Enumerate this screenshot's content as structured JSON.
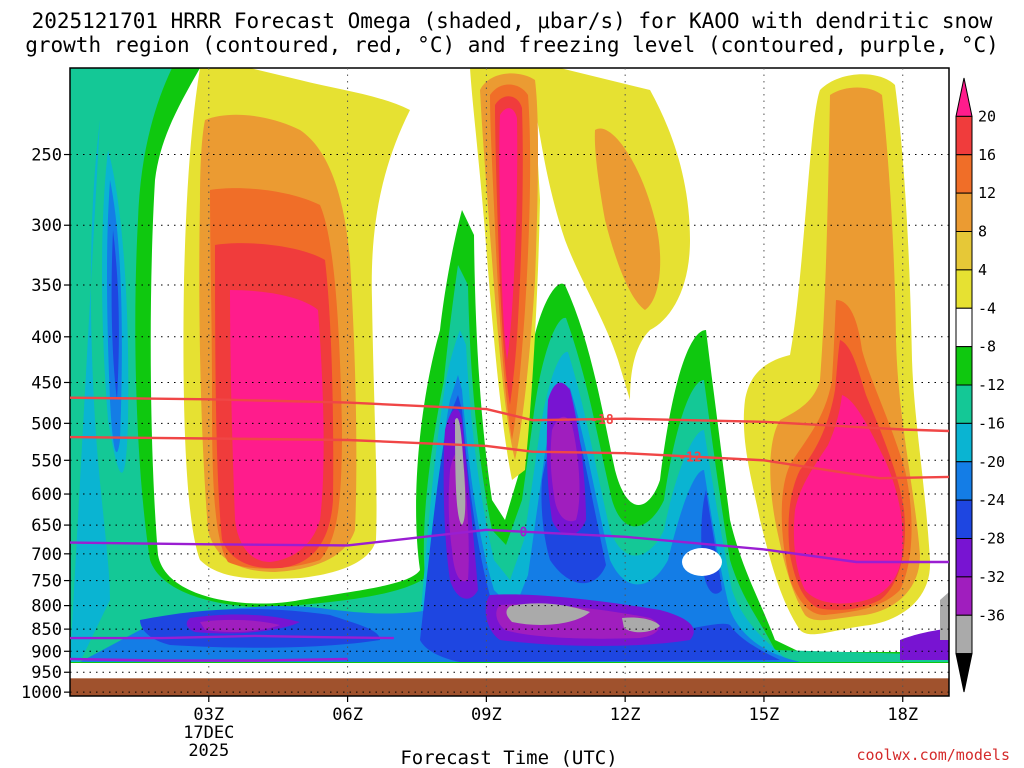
{
  "title_line1": "2025121701 HRRR Forecast Omega (shaded, μbar/s) for KAOO with dendritic snow",
  "title_line2": "growth region (contoured, red, °C) and freezing level (contoured, purple, °C)",
  "credit": "coolwx.com/models",
  "chart_data": {
    "type": "time-height contour",
    "xlabel": "Forecast Time (UTC)",
    "x_ticks": [
      "03Z",
      "06Z",
      "09Z",
      "12Z",
      "15Z",
      "18Z"
    ],
    "x_tick_hours": [
      3,
      6,
      9,
      12,
      15,
      18
    ],
    "x_range_hours": [
      0,
      19
    ],
    "date_label": [
      "17DEC",
      "2025"
    ],
    "ylabel": "",
    "y_ticks": [
      250,
      300,
      350,
      400,
      450,
      500,
      550,
      600,
      650,
      700,
      750,
      800,
      850,
      900,
      950,
      1000
    ],
    "y_range_mb": [
      200,
      1010
    ],
    "y_scale": "log-pressure (inverted)",
    "grid": true,
    "colorbar": {
      "labels": [
        "20",
        "16",
        "12",
        "8",
        "4",
        "-4",
        "-8",
        "-12",
        "-16",
        "-20",
        "-24",
        "-28",
        "-32",
        "-36"
      ],
      "colors": [
        "#ff1c8c",
        "#f03c3c",
        "#f06e28",
        "#eb9b32",
        "#e6c837",
        "#e6e132",
        "#ffffff",
        "#0fc80f",
        "#14c896",
        "#0ab4d2",
        "#147de6",
        "#1e46e1",
        "#7814d2",
        "#a01ebe",
        "#aaaaaa",
        "#000000"
      ]
    },
    "contours": [
      {
        "label": "-18",
        "color": "#f04646",
        "hours": [
          0,
          3,
          6,
          9,
          10,
          12,
          15,
          18,
          19
        ],
        "pressure_mb": [
          468,
          470,
          474,
          482,
          496,
          494,
          498,
          508,
          510
        ]
      },
      {
        "label": "-12",
        "color": "#f04646",
        "hours": [
          0,
          3,
          6,
          9,
          10,
          12,
          15,
          17.5,
          19
        ],
        "pressure_mb": [
          518,
          520,
          522,
          530,
          538,
          540,
          550,
          576,
          574
        ]
      },
      {
        "label": "0",
        "color": "#9a1ed2",
        "hours": [
          0,
          3,
          6,
          9,
          12,
          15,
          17,
          19
        ],
        "pressure_mb": [
          680,
          683,
          685,
          658,
          670,
          692,
          715,
          715
        ]
      },
      {
        "label": "",
        "color": "#9a1ed2",
        "hours": [
          0,
          2,
          4,
          5.5,
          7
        ],
        "pressure_mb": [
          870,
          870,
          865,
          868,
          870
        ]
      },
      {
        "label": "",
        "color": "#9a1ed2",
        "hours": [
          0,
          2,
          4,
          6
        ],
        "pressure_mb": [
          918,
          922,
          922,
          918
        ]
      }
    ],
    "ground_pressure_mb": 965
  }
}
